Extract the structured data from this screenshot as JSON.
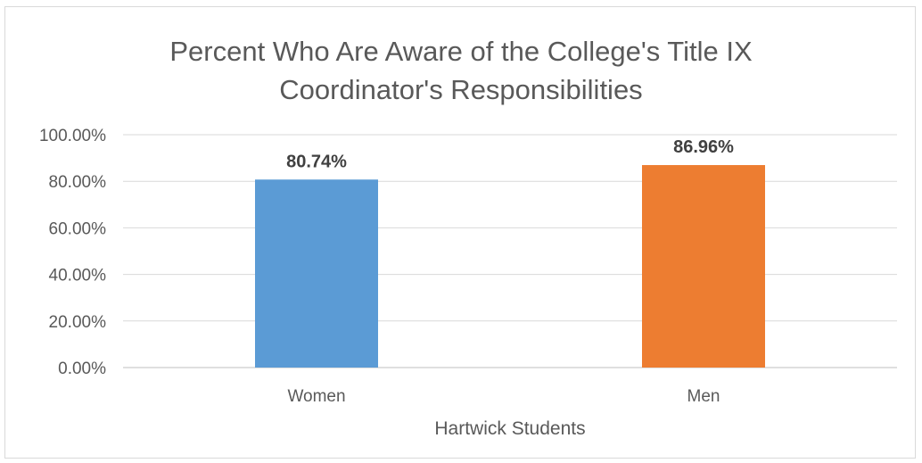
{
  "chart_data": {
    "type": "bar",
    "title_lines": [
      "Percent Who Are Aware of the College's Title IX",
      "Coordinator's Responsibilities"
    ],
    "categories": [
      "Women",
      "Men"
    ],
    "values": [
      80.74,
      86.96
    ],
    "value_labels": [
      "80.74%",
      "86.96%"
    ],
    "colors": [
      "#5b9bd5",
      "#ed7d31"
    ],
    "xlabel": "Hartwick Students",
    "ylabel": "",
    "ylim": [
      0,
      100
    ],
    "y_ticks": [
      0,
      20,
      40,
      60,
      80,
      100
    ],
    "y_tick_labels": [
      "0.00%",
      "20.00%",
      "40.00%",
      "60.00%",
      "80.00%",
      "100.00%"
    ],
    "grid": true,
    "legend": "none"
  }
}
